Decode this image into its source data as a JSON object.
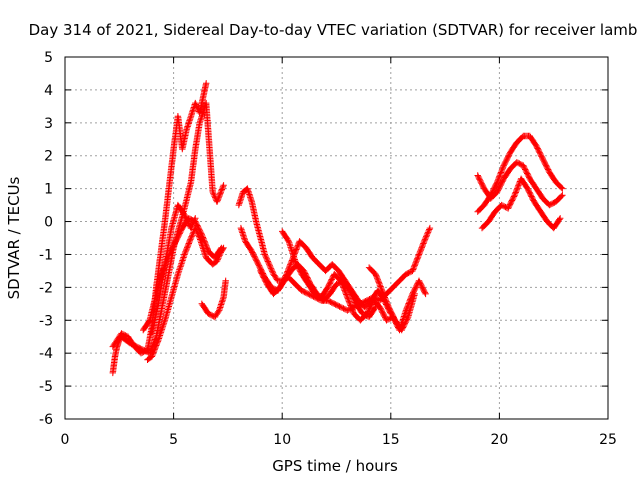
{
  "chart_data": {
    "type": "scatter",
    "title": "Day 314 of 2021, Sidereal Day-to-day VTEC variation (SDTVAR) for receiver lamb",
    "xlabel": "GPS time / hours",
    "ylabel": "SDTVAR / TECUs",
    "xlim": [
      0,
      25
    ],
    "ylim": [
      -6,
      5
    ],
    "xticks": [
      0,
      5,
      10,
      15,
      20,
      25
    ],
    "yticks": [
      -6,
      -5,
      -4,
      -3,
      -2,
      -1,
      0,
      1,
      2,
      3,
      4,
      5
    ],
    "grid": true,
    "marker": "+",
    "color": "#ff0000",
    "series": [
      {
        "x": [
          2.2,
          2.3,
          2.4,
          2.5,
          2.6,
          2.8,
          3.0,
          3.3,
          3.6,
          3.9,
          4.2,
          4.5,
          4.8,
          5.0,
          5.2,
          5.5,
          5.8,
          6.0,
          6.2,
          6.5,
          6.8,
          7.0,
          7.3
        ],
        "y": [
          -4.6,
          -4.1,
          -3.8,
          -3.6,
          -3.5,
          -3.6,
          -3.7,
          -3.8,
          -3.9,
          -4.0,
          -3.5,
          -2.5,
          -1.5,
          -0.8,
          -0.3,
          0.4,
          1.2,
          2.2,
          3.0,
          3.6,
          0.9,
          0.6,
          1.1
        ]
      },
      {
        "x": [
          2.2,
          2.4,
          2.6,
          2.9,
          3.2,
          3.5,
          3.8,
          4.0,
          4.2,
          4.4,
          4.6,
          4.8,
          5.0,
          5.2,
          5.4,
          5.6,
          5.8,
          6.0,
          6.2,
          6.4,
          6.5
        ],
        "y": [
          -3.8,
          -3.6,
          -3.4,
          -3.5,
          -3.8,
          -4.0,
          -3.9,
          -3.2,
          -2.0,
          -1.0,
          0.0,
          1.1,
          2.2,
          3.2,
          2.2,
          2.8,
          3.2,
          3.6,
          3.3,
          3.9,
          4.2
        ]
      },
      {
        "x": [
          3.8,
          4.0,
          4.3,
          4.6,
          4.9,
          5.2,
          5.5,
          5.8,
          6.0,
          6.2,
          6.5,
          6.8,
          7.0,
          7.2,
          7.3
        ],
        "y": [
          -4.2,
          -4.1,
          -3.6,
          -3.0,
          -2.3,
          -1.6,
          -1.0,
          -0.5,
          -0.2,
          -0.5,
          -1.1,
          -1.3,
          -1.2,
          -0.9,
          -0.8
        ]
      },
      {
        "x": [
          3.6,
          3.9,
          4.2,
          4.5,
          4.8,
          5.1,
          5.4,
          5.7,
          6.0,
          6.3,
          6.6,
          6.9,
          7.2
        ],
        "y": [
          -3.3,
          -3.0,
          -2.2,
          -1.5,
          -1.0,
          -0.6,
          -0.2,
          0.1,
          0.0,
          -0.4,
          -0.9,
          -1.1,
          -0.8
        ]
      },
      {
        "x": [
          4.0,
          4.3,
          4.6,
          4.9,
          5.2,
          5.5,
          5.8,
          6.0
        ],
        "y": [
          -3.4,
          -2.5,
          -1.3,
          -0.2,
          0.5,
          0.2,
          -0.2,
          0.1
        ]
      },
      {
        "x": [
          6.3,
          6.6,
          6.9,
          7.1,
          7.3,
          7.4
        ],
        "y": [
          -2.5,
          -2.8,
          -2.9,
          -2.7,
          -2.3,
          -1.8
        ]
      },
      {
        "x": [
          8.0,
          8.2,
          8.4,
          8.6,
          8.8,
          9.0,
          9.2,
          9.4,
          9.6,
          9.8,
          10.0,
          10.3,
          10.6,
          10.9,
          11.2,
          11.5,
          11.8,
          12.1,
          12.4,
          12.7,
          13.0,
          13.3,
          13.6,
          13.9,
          14.2,
          14.5,
          14.8,
          15.1,
          15.4,
          15.7,
          16.0,
          16.3,
          16.6,
          16.8
        ],
        "y": [
          0.5,
          0.9,
          1.0,
          0.6,
          0.0,
          -0.5,
          -1.0,
          -1.3,
          -1.6,
          -1.8,
          -1.8,
          -1.7,
          -1.9,
          -2.1,
          -2.2,
          -2.3,
          -2.4,
          -2.4,
          -2.5,
          -2.6,
          -2.7,
          -2.6,
          -2.5,
          -2.4,
          -2.3,
          -2.4,
          -2.2,
          -2.0,
          -1.8,
          -1.6,
          -1.5,
          -1.0,
          -0.5,
          -0.2
        ]
      },
      {
        "x": [
          8.1,
          8.3,
          8.6,
          8.9,
          9.2,
          9.5,
          9.8,
          10.1,
          10.4,
          10.7,
          11.0,
          11.3,
          11.6,
          11.9,
          12.2,
          12.5,
          12.8,
          13.1,
          13.4,
          13.7,
          14.0,
          14.3
        ],
        "y": [
          -0.2,
          -0.6,
          -0.9,
          -1.3,
          -1.7,
          -2.0,
          -2.1,
          -1.8,
          -1.5,
          -1.3,
          -1.5,
          -1.9,
          -2.2,
          -2.4,
          -2.2,
          -1.9,
          -1.8,
          -2.1,
          -2.5,
          -2.8,
          -2.9,
          -2.6
        ]
      },
      {
        "x": [
          9.0,
          9.3,
          9.6,
          9.9,
          10.2,
          10.5,
          10.8,
          11.1,
          11.4,
          11.7,
          12.0,
          12.3,
          12.6,
          12.9,
          13.2,
          13.5,
          13.8,
          14.1,
          14.4,
          14.7,
          15.0
        ],
        "y": [
          -1.5,
          -1.9,
          -2.2,
          -2.0,
          -1.6,
          -1.1,
          -0.6,
          -0.8,
          -1.1,
          -1.3,
          -1.5,
          -1.3,
          -1.5,
          -1.8,
          -2.1,
          -2.4,
          -2.6,
          -2.4,
          -2.1,
          -2.4,
          -2.8
        ]
      },
      {
        "x": [
          10.0,
          10.3,
          10.6,
          10.9,
          11.2,
          11.5,
          11.8,
          12.1,
          12.4,
          12.7,
          13.0,
          13.3,
          13.6,
          13.9,
          14.2,
          14.5,
          14.8,
          15.1,
          15.4,
          15.7,
          16.0,
          16.3,
          16.6
        ],
        "y": [
          -0.3,
          -0.6,
          -1.2,
          -1.6,
          -1.9,
          -2.2,
          -2.3,
          -2.0,
          -1.6,
          -1.8,
          -2.3,
          -2.8,
          -3.0,
          -2.8,
          -2.4,
          -2.6,
          -3.0,
          -2.9,
          -3.3,
          -2.7,
          -2.2,
          -1.8,
          -2.2
        ]
      },
      {
        "x": [
          14.0,
          14.3,
          14.6,
          14.9,
          15.2,
          15.5,
          15.8,
          16.1
        ],
        "y": [
          -1.4,
          -1.6,
          -2.1,
          -2.6,
          -3.0,
          -3.3,
          -2.9,
          -2.2
        ]
      },
      {
        "x": [
          19.0,
          19.3,
          19.6,
          19.9,
          20.2,
          20.5,
          20.8,
          21.1,
          21.4,
          21.7,
          22.0,
          22.3,
          22.6,
          22.9
        ],
        "y": [
          0.3,
          0.5,
          0.8,
          1.2,
          1.7,
          2.1,
          2.4,
          2.6,
          2.6,
          2.3,
          1.9,
          1.5,
          1.2,
          1.0
        ]
      },
      {
        "x": [
          19.0,
          19.3,
          19.6,
          19.9,
          20.2,
          20.5,
          20.8,
          21.1,
          21.4,
          21.7,
          22.0,
          22.3,
          22.6,
          22.9
        ],
        "y": [
          1.4,
          1.0,
          0.7,
          0.9,
          1.3,
          1.6,
          1.8,
          1.7,
          1.3,
          1.0,
          0.7,
          0.5,
          0.6,
          0.8
        ]
      },
      {
        "x": [
          19.2,
          19.5,
          19.8,
          20.1,
          20.4,
          20.7,
          21.0,
          21.3,
          21.6,
          21.9,
          22.2,
          22.5,
          22.8
        ],
        "y": [
          -0.2,
          0.0,
          0.3,
          0.5,
          0.4,
          0.8,
          1.3,
          1.0,
          0.6,
          0.3,
          0.0,
          -0.2,
          0.1
        ]
      }
    ]
  }
}
